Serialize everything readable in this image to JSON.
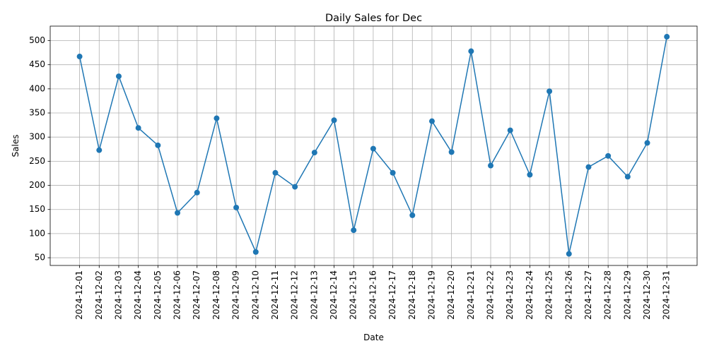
{
  "chart_data": {
    "type": "line",
    "title": "Daily Sales for Dec",
    "xlabel": "Date",
    "ylabel": "Sales",
    "grid": true,
    "ylim": [
      34,
      530
    ],
    "yticks": [
      50,
      100,
      150,
      200,
      250,
      300,
      350,
      400,
      450,
      500
    ],
    "categories": [
      "2024-12-01",
      "2024-12-02",
      "2024-12-03",
      "2024-12-04",
      "2024-12-05",
      "2024-12-06",
      "2024-12-07",
      "2024-12-08",
      "2024-12-09",
      "2024-12-10",
      "2024-12-11",
      "2024-12-12",
      "2024-12-13",
      "2024-12-14",
      "2024-12-15",
      "2024-12-16",
      "2024-12-17",
      "2024-12-18",
      "2024-12-19",
      "2024-12-20",
      "2024-12-21",
      "2024-12-22",
      "2024-12-23",
      "2024-12-24",
      "2024-12-25",
      "2024-12-26",
      "2024-12-27",
      "2024-12-28",
      "2024-12-29",
      "2024-12-30",
      "2024-12-31"
    ],
    "series": [
      {
        "color": "#1f77b4",
        "marker": "circle",
        "values": [
          467,
          273,
          426,
          319,
          283,
          143,
          185,
          339,
          154,
          62,
          226,
          197,
          268,
          335,
          107,
          276,
          226,
          138,
          333,
          269,
          478,
          241,
          314,
          222,
          395,
          58,
          238,
          261,
          218,
          288,
          508
        ]
      }
    ]
  }
}
